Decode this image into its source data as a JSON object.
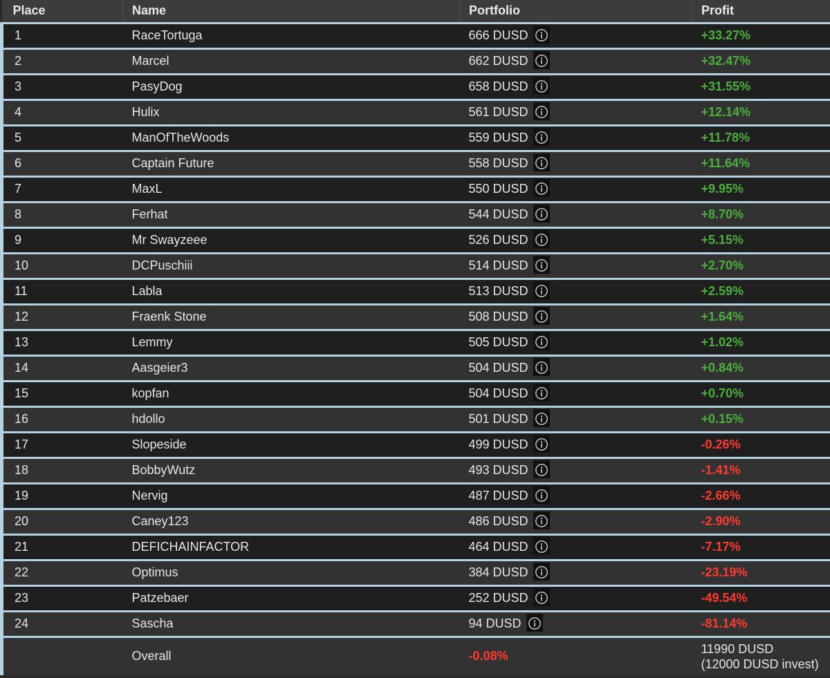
{
  "headers": {
    "place": "Place",
    "name": "Name",
    "portfolio": "Portfolio",
    "profit": "Profit"
  },
  "rows": [
    {
      "place": "1",
      "name": "RaceTortuga",
      "portfolio": "666 DUSD",
      "profit": "+33.27%"
    },
    {
      "place": "2",
      "name": "Marcel",
      "portfolio": "662 DUSD",
      "profit": "+32.47%"
    },
    {
      "place": "3",
      "name": "PasyDog",
      "portfolio": "658 DUSD",
      "profit": "+31.55%"
    },
    {
      "place": "4",
      "name": "Hulix",
      "portfolio": "561 DUSD",
      "profit": "+12.14%"
    },
    {
      "place": "5",
      "name": "ManOfTheWoods",
      "portfolio": "559 DUSD",
      "profit": "+11.78%"
    },
    {
      "place": "6",
      "name": "Captain Future",
      "portfolio": "558 DUSD",
      "profit": "+11.64%"
    },
    {
      "place": "7",
      "name": "MaxL",
      "portfolio": "550 DUSD",
      "profit": "+9.95%"
    },
    {
      "place": "8",
      "name": "Ferhat",
      "portfolio": "544 DUSD",
      "profit": "+8.70%"
    },
    {
      "place": "9",
      "name": "Mr Swayzeee",
      "portfolio": "526 DUSD",
      "profit": "+5.15%"
    },
    {
      "place": "10",
      "name": "DCPuschiii",
      "portfolio": "514 DUSD",
      "profit": "+2.70%"
    },
    {
      "place": "11",
      "name": "Labla",
      "portfolio": "513 DUSD",
      "profit": "+2.59%"
    },
    {
      "place": "12",
      "name": "Fraenk Stone",
      "portfolio": "508 DUSD",
      "profit": "+1.64%"
    },
    {
      "place": "13",
      "name": "Lemmy",
      "portfolio": "505 DUSD",
      "profit": "+1.02%"
    },
    {
      "place": "14",
      "name": "Aasgeier3",
      "portfolio": "504 DUSD",
      "profit": "+0.84%"
    },
    {
      "place": "15",
      "name": "kopfan",
      "portfolio": "504 DUSD",
      "profit": "+0.70%"
    },
    {
      "place": "16",
      "name": "hdollo",
      "portfolio": "501 DUSD",
      "profit": "+0.15%"
    },
    {
      "place": "17",
      "name": "Slopeside",
      "portfolio": "499 DUSD",
      "profit": "-0.26%"
    },
    {
      "place": "18",
      "name": "BobbyWutz",
      "portfolio": "493 DUSD",
      "profit": "-1.41%"
    },
    {
      "place": "19",
      "name": "Nervig",
      "portfolio": "487 DUSD",
      "profit": "-2.66%"
    },
    {
      "place": "20",
      "name": "Caney123",
      "portfolio": "486 DUSD",
      "profit": "-2.90%"
    },
    {
      "place": "21",
      "name": "DEFICHAINFACTOR",
      "portfolio": "464 DUSD",
      "profit": "-7.17%"
    },
    {
      "place": "22",
      "name": "Optimus",
      "portfolio": "384 DUSD",
      "profit": "-23.19%"
    },
    {
      "place": "23",
      "name": "Patzebaer",
      "portfolio": "252 DUSD",
      "profit": "-49.54%"
    },
    {
      "place": "24",
      "name": "Sascha",
      "portfolio": "94 DUSD",
      "profit": "-81.14%"
    }
  ],
  "overall": {
    "label": "Overall",
    "portfolio_change": "-0.08%",
    "total": "11990 DUSD",
    "invest": "(12000 DUSD invest)"
  },
  "icons": {
    "info": "info-icon"
  },
  "colors": {
    "positive": "#4caf3e",
    "negative": "#ff3b2f",
    "row_separator": "#b7d2e2"
  }
}
